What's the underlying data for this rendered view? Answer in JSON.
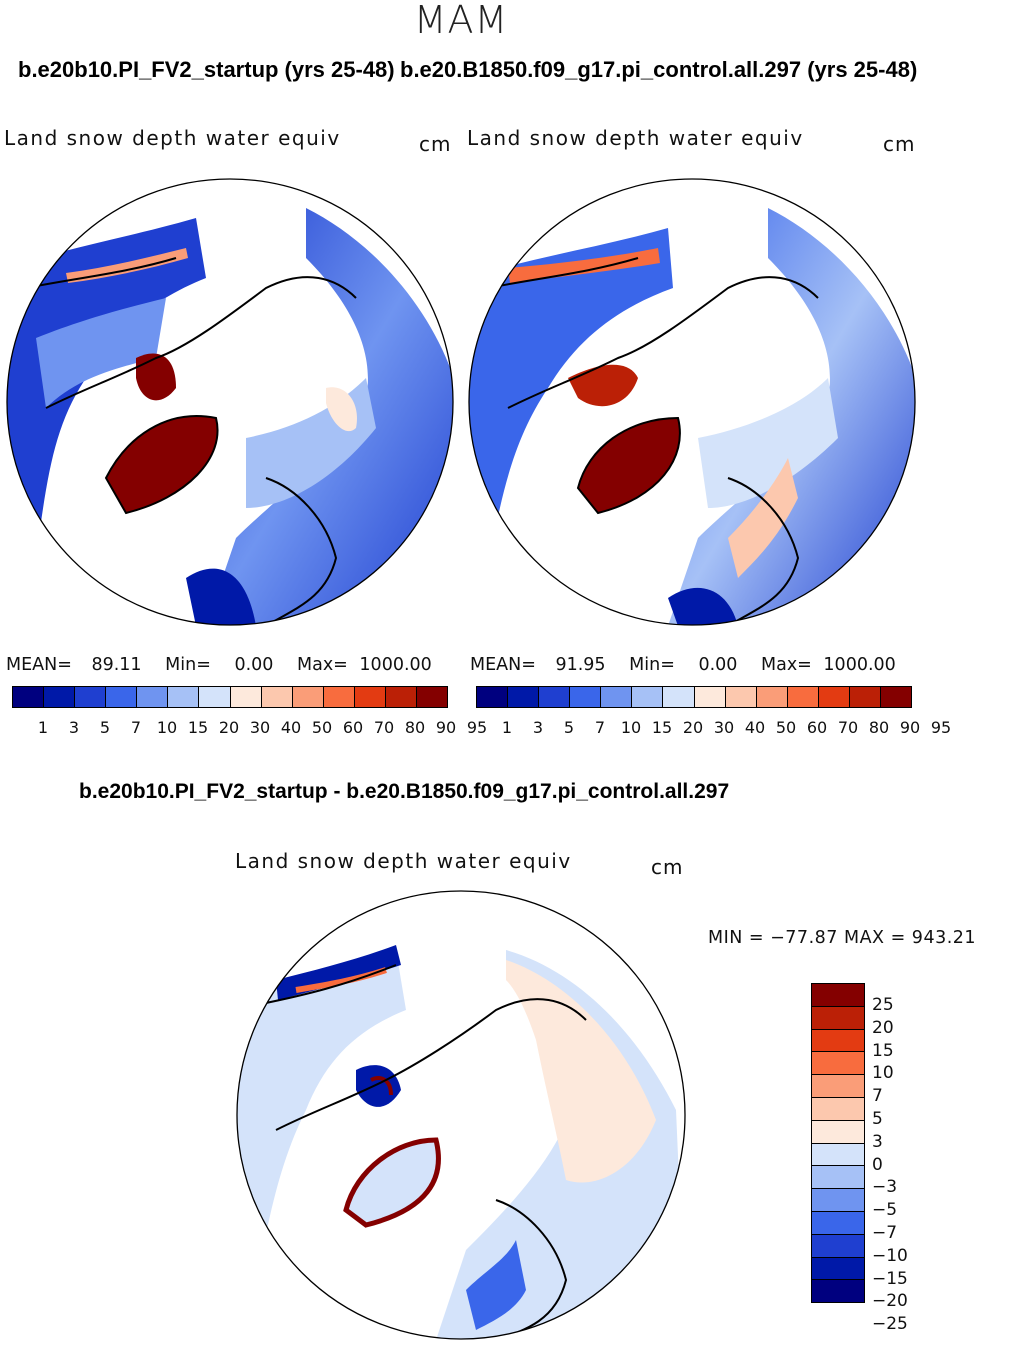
{
  "season": "MAM",
  "panel_left": {
    "title": "b.e20b10.PI_FV2_startup (yrs 25-48)",
    "variable": "Land snow depth water equiv",
    "unit": "cm",
    "mean_label": "MEAN=",
    "mean": "89.11",
    "min_label": "Min=",
    "min": "0.00",
    "max_label": "Max=",
    "max": "1000.00"
  },
  "panel_right": {
    "title": "b.e20.B1850.f09_g17.pi_control.all.297 (yrs 25-48)",
    "variable": "Land snow depth water equiv",
    "unit": "cm",
    "mean_label": "MEAN=",
    "mean": "91.95",
    "min_label": "Min=",
    "min": "0.00",
    "max_label": "Max=",
    "max": "1000.00"
  },
  "panel_diff": {
    "title": "b.e20b10.PI_FV2_startup - b.e20.B1850.f09_g17.pi_control.all.297",
    "variable": "Land snow depth water equiv",
    "unit": "cm",
    "minmax": "MIN = −77.87 MAX = 943.21"
  },
  "abs_colorbar": {
    "colors": [
      "#00007f",
      "#0019a8",
      "#1f3fd0",
      "#3a66ea",
      "#6f94f0",
      "#a6c1f6",
      "#d4e3fa",
      "#fde9dc",
      "#fcc8ae",
      "#fa9d78",
      "#f86c3e",
      "#e33b12",
      "#bb2006",
      "#840000"
    ],
    "tick_labels": [
      "1",
      "3",
      "5",
      "7",
      "10",
      "15",
      "20",
      "30",
      "40",
      "50",
      "60",
      "70",
      "80",
      "90",
      "95"
    ]
  },
  "diff_colorbar": {
    "colors": [
      "#840000",
      "#bb2006",
      "#e33b12",
      "#f86c3e",
      "#fa9d78",
      "#fcc8ae",
      "#fde9dc",
      "#d4e3fa",
      "#a6c1f6",
      "#6f94f0",
      "#3a66ea",
      "#1f3fd0",
      "#0019a8",
      "#00007f"
    ],
    "labels": [
      "25",
      "20",
      "15",
      "10",
      "7",
      "5",
      "3",
      "0",
      "−3",
      "−5",
      "−7",
      "−10",
      "−15",
      "−20",
      "−25"
    ]
  }
}
